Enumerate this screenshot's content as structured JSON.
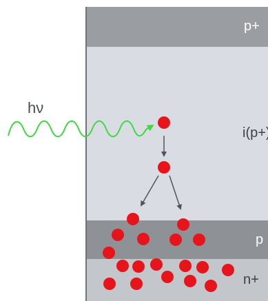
{
  "photon": {
    "label": "hν",
    "color": "#3fd83f"
  },
  "layers": [
    {
      "key": "p_plus",
      "label": "p+"
    },
    {
      "key": "intrinsic",
      "label": "i(p+)"
    },
    {
      "key": "p",
      "label": "p"
    },
    {
      "key": "n_plus",
      "label": "n+"
    }
  ],
  "carrier_color": "#e8141b",
  "arrow_color": "#505358"
}
